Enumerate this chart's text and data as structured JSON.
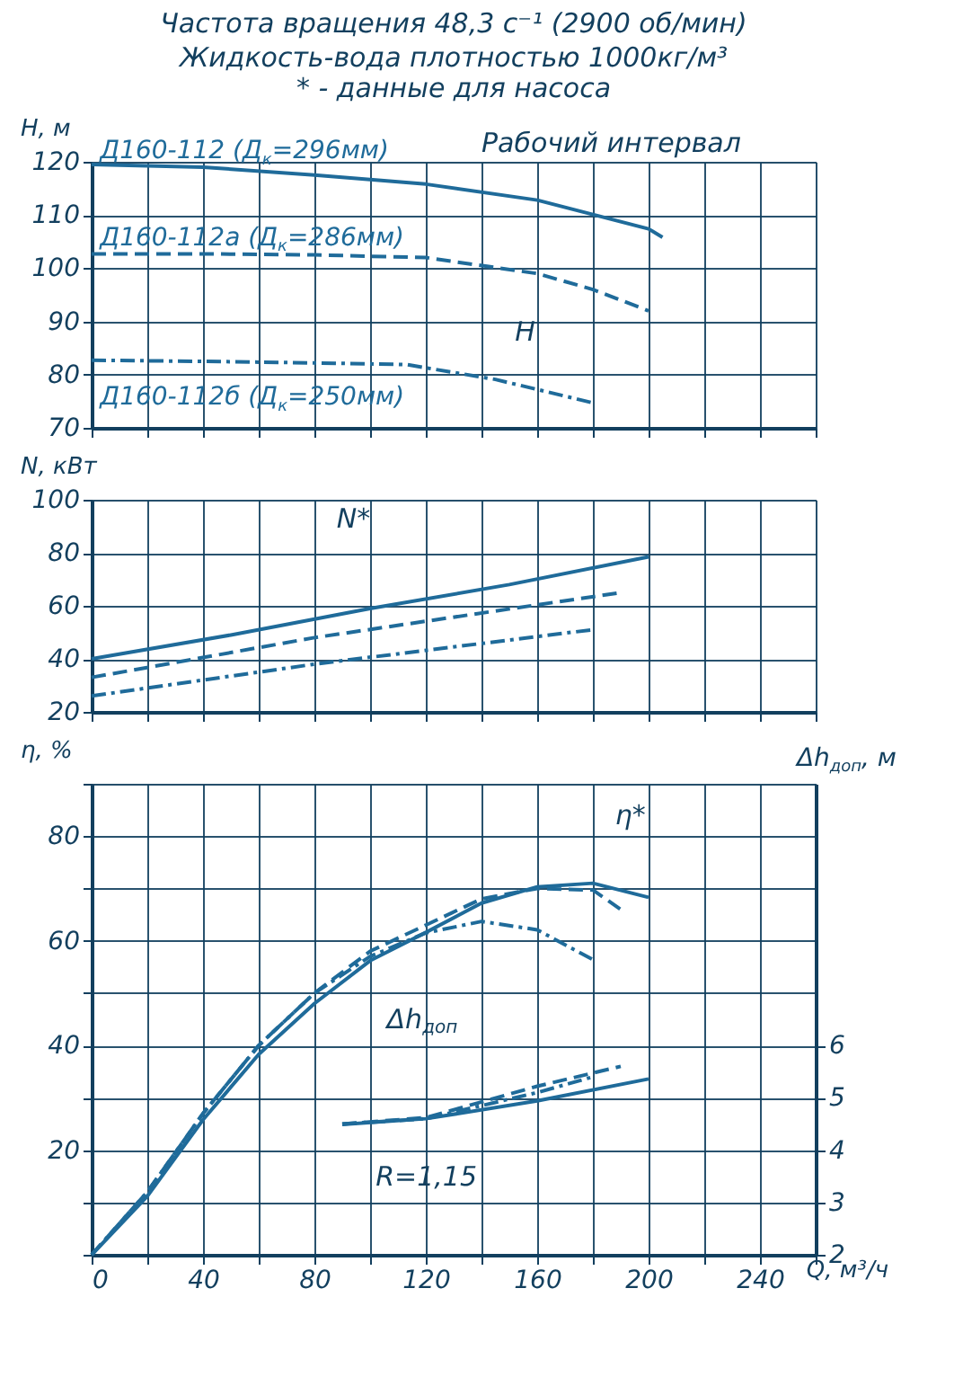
{
  "chart_data": [
    {
      "type": "line",
      "title": "Частота вращения 48,3 с⁻¹ (2900 об/мин)",
      "subtitle": "Жидкость-вода плотностью 1000кг/м³",
      "ylabel": "H, м",
      "annotations": [
        "* - данные для насоса",
        "Рабочий интервал",
        "H"
      ],
      "xlim": [
        0,
        260
      ],
      "xticks": [
        0,
        {
          "value": 20,
          "label": null
        },
        40,
        {
          "value": 60,
          "label": null
        },
        80,
        {
          "value": 100,
          "label": null
        },
        120,
        {
          "value": 140,
          "label": null
        },
        160,
        {
          "value": 180,
          "label": null
        },
        200,
        {
          "value": 220,
          "label": null
        },
        240,
        {
          "value": 260,
          "label": null
        }
      ],
      "ylim": [
        70,
        120
      ],
      "yticks": [
        70,
        80,
        90,
        100,
        110,
        120
      ],
      "grid": true,
      "tick_labels": "y",
      "series": [
        {
          "name": "Д160-112 (Д$_{к}$=296мм)",
          "color": "#1f6b9a",
          "line_style": "solid",
          "x": [
            0,
            40,
            80,
            120,
            160,
            200,
            205
          ],
          "values": [
            119.5,
            119,
            117.5,
            115.8,
            112.8,
            107.4,
            105.8
          ]
        },
        {
          "name": "Д160-112а (Д$_{к}$=286мм)",
          "color": "#1f6b9a",
          "line_style": "dashed",
          "x": [
            0,
            40,
            80,
            120,
            160,
            180,
            200
          ],
          "values": [
            102.7,
            102.7,
            102.5,
            102,
            99,
            96,
            92
          ]
        },
        {
          "name": "Д160-112б (Д$_{к}$=250мм)",
          "color": "#1f6b9a",
          "line_style": "dotted",
          "x": [
            0,
            40,
            80,
            113,
            145,
            180
          ],
          "values": [
            82.7,
            82.5,
            82.2,
            81.9,
            79.1,
            74.7
          ]
        }
      ]
    },
    {
      "type": "line",
      "ylabel": "N, кВт",
      "annotations": [
        "N*"
      ],
      "xlim": [
        0,
        260
      ],
      "xticks": [
        0,
        {
          "value": 20,
          "label": null
        },
        40,
        {
          "value": 60,
          "label": null
        },
        80,
        {
          "value": 100,
          "label": null
        },
        120,
        {
          "value": 140,
          "label": null
        },
        160,
        {
          "value": 180,
          "label": null
        },
        200,
        {
          "value": 220,
          "label": null
        },
        240,
        {
          "value": 260,
          "label": null
        }
      ],
      "ylim": [
        20,
        100
      ],
      "yticks": [
        20,
        40,
        60,
        80,
        100
      ],
      "grid": true,
      "tick_labels": "y",
      "series": [
        {
          "color": "#1f6b9a",
          "line_style": "solid",
          "x": [
            0,
            50,
            100,
            150,
            200
          ],
          "values": [
            40,
            49,
            59,
            68,
            78.5
          ]
        },
        {
          "color": "#1f6b9a",
          "line_style": "dashed",
          "x": [
            0,
            80,
            190
          ],
          "values": [
            33,
            48,
            65
          ]
        },
        {
          "color": "#1f6b9a",
          "line_style": "dotted",
          "x": [
            0,
            80,
            180
          ],
          "values": [
            26,
            38,
            51
          ]
        }
      ]
    },
    {
      "type": "line",
      "xlabel": "Q, м³/ч",
      "ylabel": "η, %",
      "y2label": "Δh$_{доп}$, м",
      "annotations": [
        "η*",
        "Δh$_{доп}$",
        "R=1,15"
      ],
      "xlim": [
        0,
        260
      ],
      "xticks": [
        0,
        {
          "value": 20,
          "label": null
        },
        40,
        {
          "value": 60,
          "label": null
        },
        80,
        {
          "value": 100,
          "label": null
        },
        120,
        {
          "value": 140,
          "label": null
        },
        160,
        {
          "value": 180,
          "label": null
        },
        200,
        {
          "value": 220,
          "label": null
        },
        240,
        {
          "value": 260,
          "label": null
        }
      ],
      "ylim": [
        0,
        90
      ],
      "yticks": [
        {
          "value": 0,
          "label": null
        },
        {
          "value": 10,
          "label": null
        },
        20,
        {
          "value": 30,
          "label": null
        },
        40,
        {
          "value": 50,
          "label": null
        },
        60,
        {
          "value": 70,
          "label": null
        },
        80,
        {
          "value": 90,
          "label": null
        }
      ],
      "y2lim": [
        2,
        11
      ],
      "y2ticks": [
        2,
        3,
        4,
        5,
        6
      ],
      "grid": true,
      "series": [
        {
          "color": "#1f6b9a",
          "line_style": "solid",
          "x": [
            0,
            20,
            40,
            60,
            80,
            100,
            120,
            140,
            160,
            180,
            200
          ],
          "values": [
            0,
            11.2,
            25.8,
            38.3,
            48,
            56.2,
            61.6,
            67.2,
            70.3,
            71,
            68.3
          ]
        },
        {
          "color": "#1f6b9a",
          "line_style": "dashed",
          "x": [
            0,
            20,
            40,
            60,
            80,
            100,
            120,
            140,
            160,
            180,
            190
          ],
          "values": [
            0,
            12,
            27,
            40,
            50,
            58,
            63,
            68,
            70,
            69.7,
            66
          ]
        },
        {
          "color": "#1f6b9a",
          "line_style": "dotted",
          "x": [
            0,
            20,
            40,
            60,
            80,
            100,
            120,
            140,
            160,
            180
          ],
          "values": [
            0,
            12,
            27,
            40,
            50,
            57,
            61.5,
            63.7,
            62.1,
            56.4
          ]
        },
        {
          "color": "#1f6b9a",
          "line_style": "solid",
          "axis": "y2",
          "x": [
            90,
            120,
            160,
            200
          ],
          "values": [
            4.49,
            4.6,
            4.94,
            5.36
          ]
        },
        {
          "color": "#1f6b9a",
          "line_style": "dashed",
          "axis": "y2",
          "x": [
            90,
            120,
            160,
            190
          ],
          "values": [
            4.5,
            4.62,
            5.22,
            5.6
          ]
        },
        {
          "color": "#1f6b9a",
          "line_style": "dotted",
          "axis": "y2",
          "x": [
            90,
            120,
            160,
            180
          ],
          "values": [
            4.5,
            4.6,
            5.1,
            5.4
          ]
        }
      ]
    }
  ]
}
